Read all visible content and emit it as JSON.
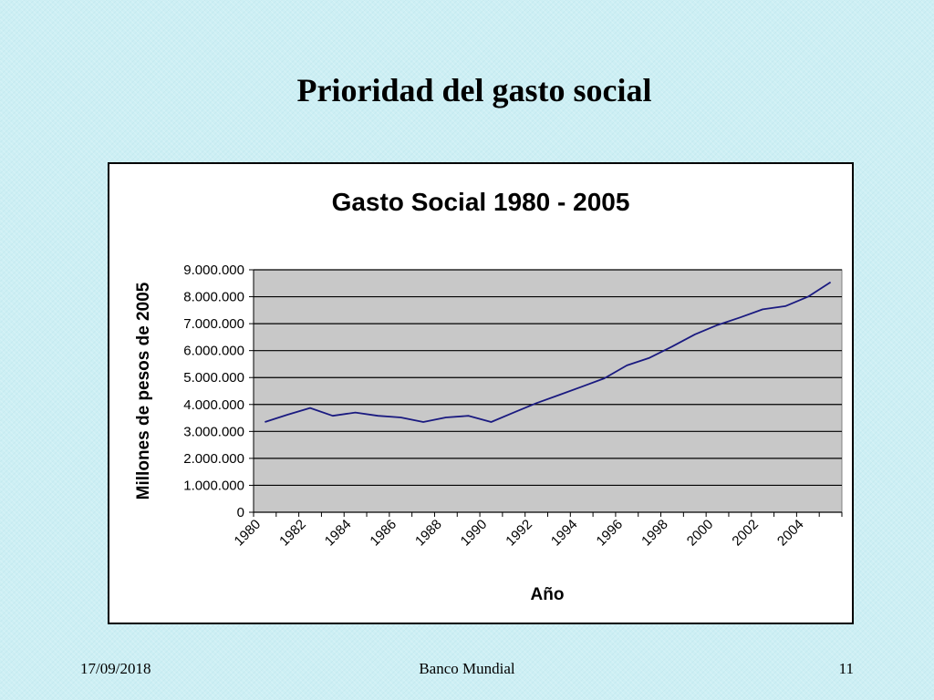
{
  "slide": {
    "title": "Prioridad del gasto social",
    "footer_date": "17/09/2018",
    "footer_source": "Banco Mundial",
    "page_number": "11"
  },
  "chart_data": {
    "type": "line",
    "title": "Gasto Social 1980 - 2005",
    "xlabel": "Año",
    "ylabel": "Millones de pesos de 2005",
    "x": [
      1980,
      1981,
      1982,
      1983,
      1984,
      1985,
      1986,
      1987,
      1988,
      1989,
      1990,
      1991,
      1992,
      1993,
      1994,
      1995,
      1996,
      1997,
      1998,
      1999,
      2000,
      2001,
      2002,
      2003,
      2004,
      2005
    ],
    "x_tick_labels": [
      "1980",
      "1982",
      "1984",
      "1986",
      "1988",
      "1990",
      "1992",
      "1994",
      "1996",
      "1998",
      "2000",
      "2002",
      "2004"
    ],
    "ylim": [
      0,
      9000000
    ],
    "y_ticks": [
      0,
      1000000,
      2000000,
      3000000,
      4000000,
      5000000,
      6000000,
      7000000,
      8000000,
      9000000
    ],
    "y_tick_labels": [
      "0",
      "1.000.000",
      "2.000.000",
      "3.000.000",
      "4.000.000",
      "5.000.000",
      "6.000.000",
      "7.000.000",
      "8.000.000",
      "9.000.000"
    ],
    "grid": true,
    "series": [
      {
        "values": [
          3350000,
          3620000,
          3870000,
          3580000,
          3700000,
          3580000,
          3520000,
          3350000,
          3520000,
          3580000,
          3350000,
          3700000,
          4050000,
          4350000,
          4660000,
          4970000,
          5450000,
          5730000,
          6150000,
          6600000,
          6950000,
          7230000,
          7530000,
          7650000,
          8000000,
          8540000
        ]
      }
    ],
    "colors": {
      "line": "#1a1a80",
      "plot_bg": "#c8c8c8",
      "grid": "#000000"
    }
  }
}
